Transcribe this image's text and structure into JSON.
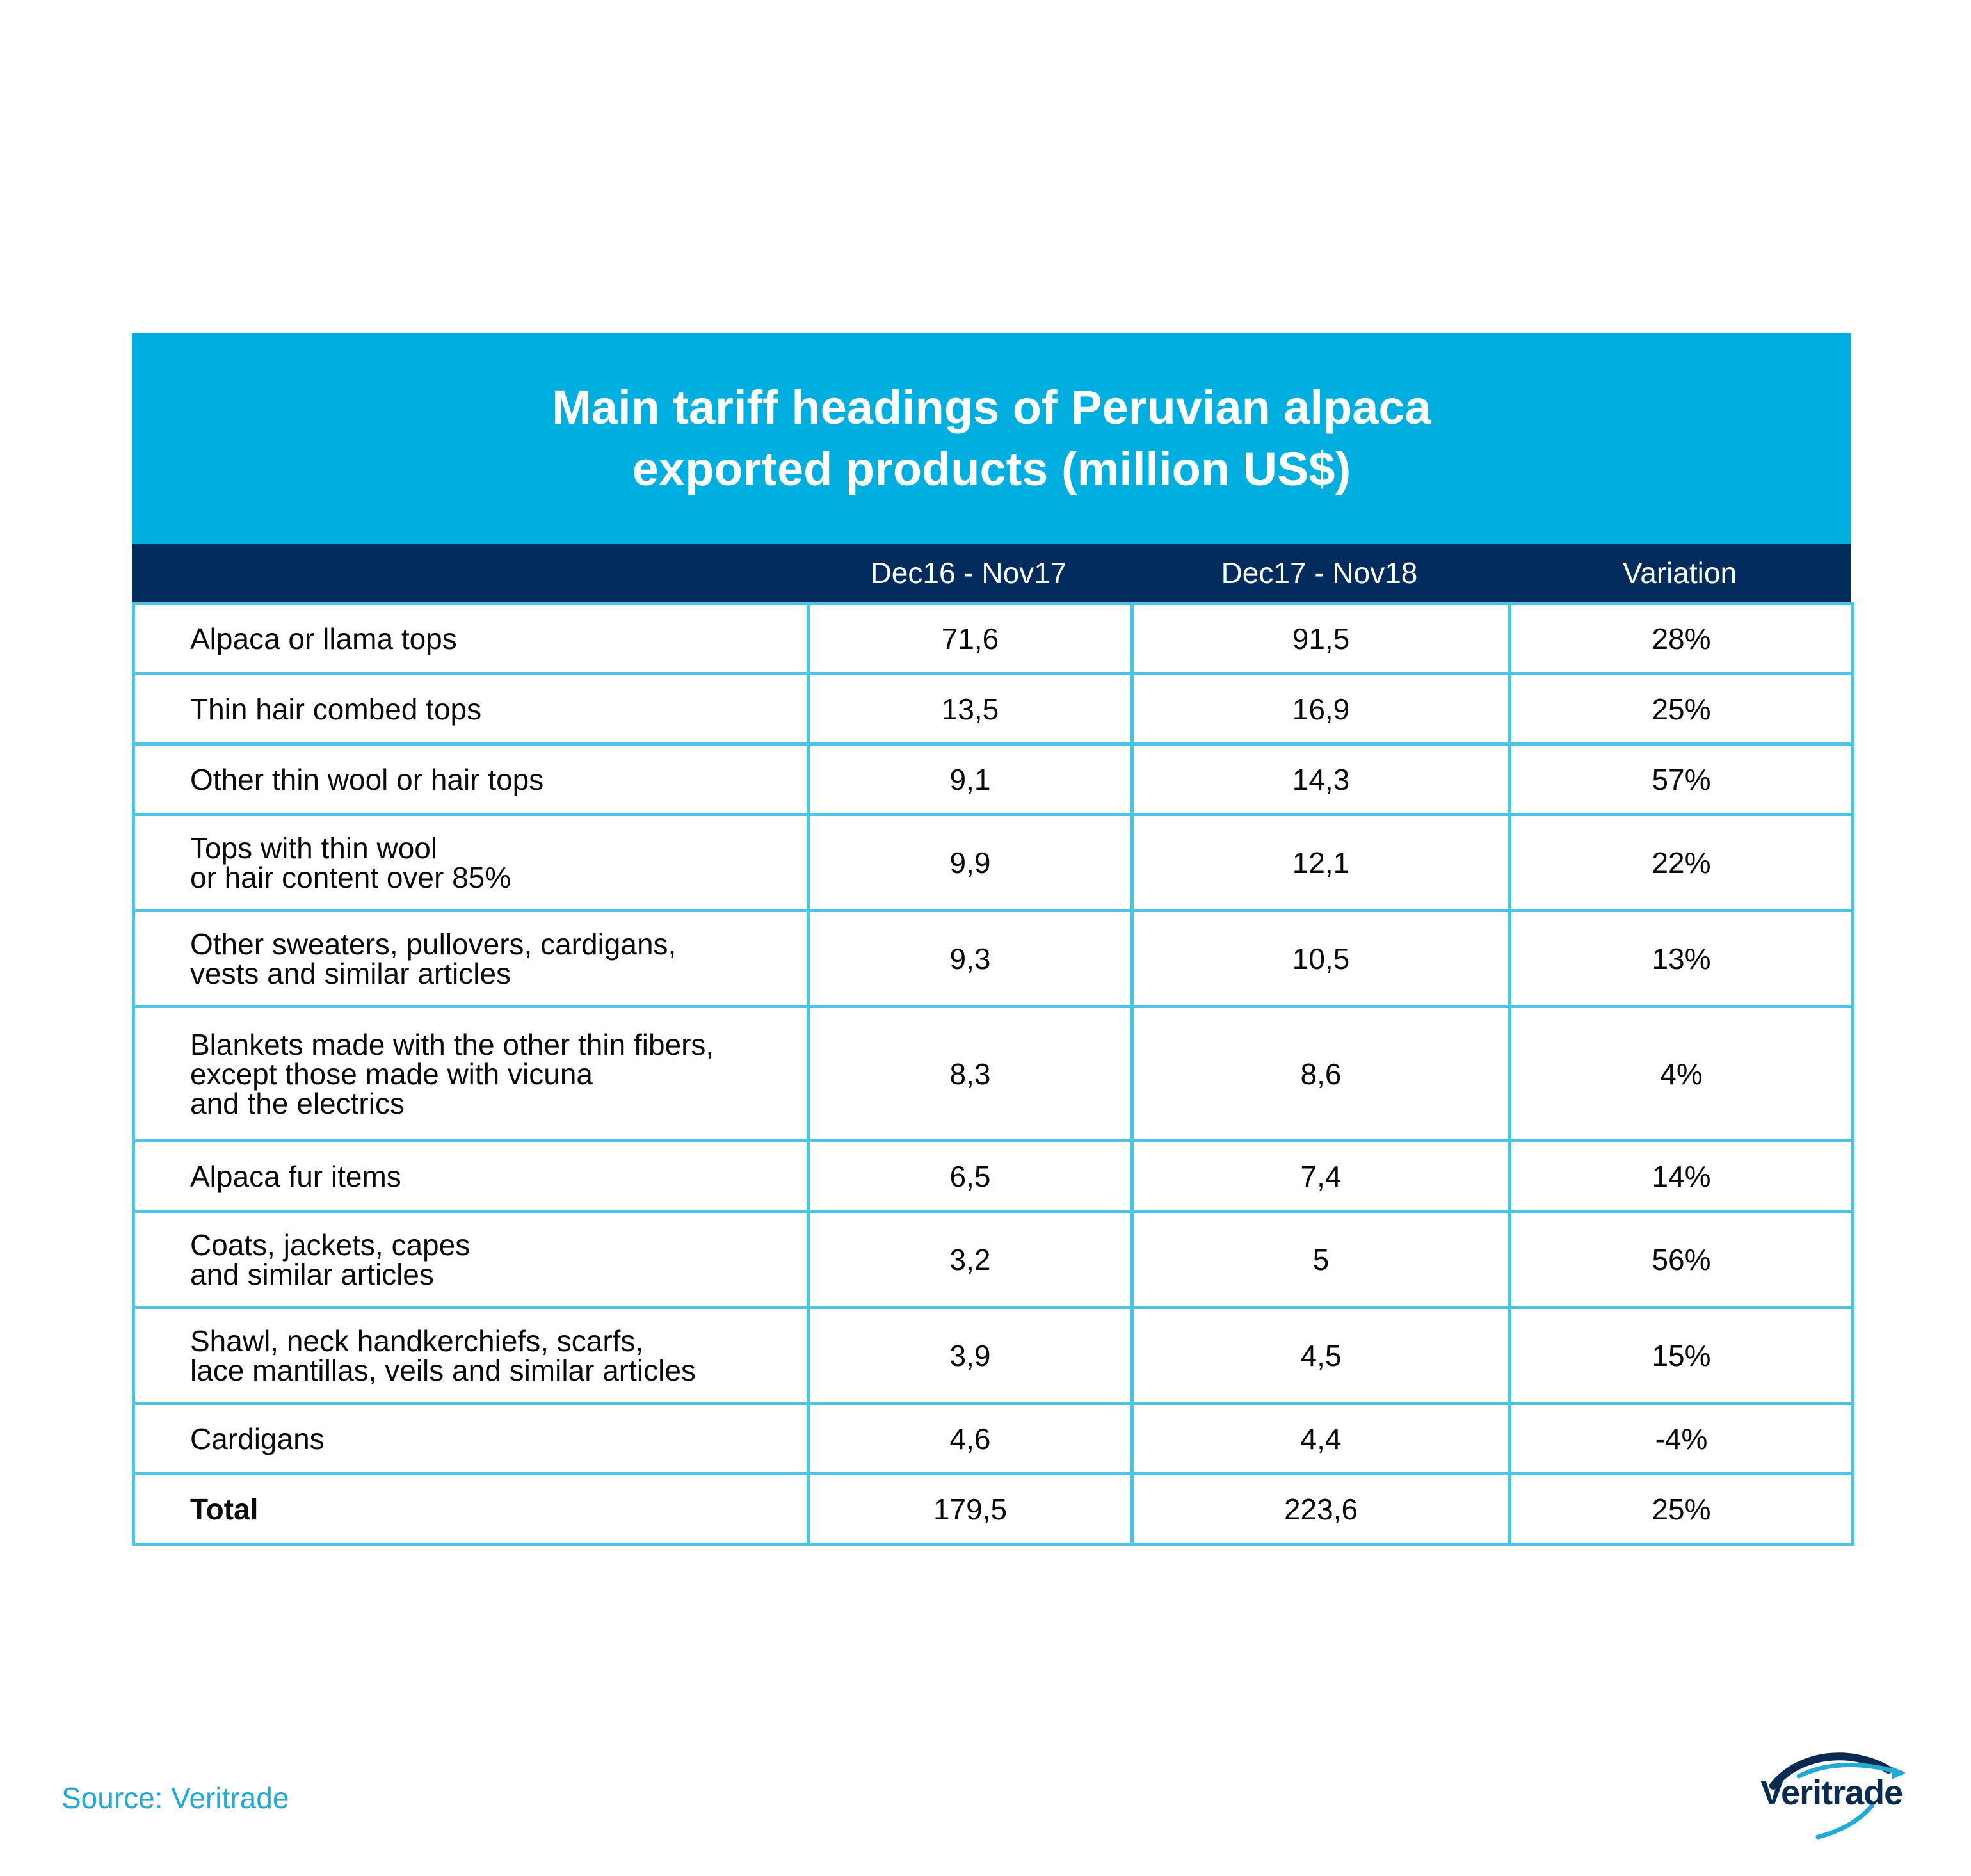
{
  "title": "Main tariff headings of Peruvian alpaca exported products (million US$)",
  "header": {
    "col1": "Dec16 - Nov17",
    "col2": "Dec17 - Nov18",
    "col3": "Variation"
  },
  "rows": [
    {
      "label": [
        "Alpaca or llama tops"
      ],
      "v1": "71,6",
      "v2": "91,5",
      "v3": "28%"
    },
    {
      "label": [
        "Thin hair combed tops"
      ],
      "v1": "13,5",
      "v2": "16,9",
      "v3": "25%"
    },
    {
      "label": [
        "Other thin wool or hair tops"
      ],
      "v1": "9,1",
      "v2": "14,3",
      "v3": "57%"
    },
    {
      "label": [
        "Tops with thin wool",
        "or hair content over 85%"
      ],
      "v1": "9,9",
      "v2": "12,1",
      "v3": "22%"
    },
    {
      "label": [
        "Other sweaters, pullovers, cardigans,",
        "vests and similar articles"
      ],
      "v1": "9,3",
      "v2": "10,5",
      "v3": "13%"
    },
    {
      "label": [
        "Blankets made with the other thin fibers,",
        "except those made with vicuna",
        "and the electrics"
      ],
      "v1": "8,3",
      "v2": "8,6",
      "v3": "4%"
    },
    {
      "label": [
        "Alpaca fur items"
      ],
      "v1": "6,5",
      "v2": "7,4",
      "v3": "14%"
    },
    {
      "label": [
        "Coats, jackets, capes",
        "and similar articles"
      ],
      "v1": "3,2",
      "v2": "5",
      "v3": "56%"
    },
    {
      "label": [
        "Shawl, neck handkerchiefs, scarfs,",
        "lace mantillas, veils and similar articles"
      ],
      "v1": "3,9",
      "v2": "4,5",
      "v3": "15%"
    },
    {
      "label": [
        "Cardigans"
      ],
      "v1": "4,6",
      "v2": "4,4",
      "v3": "-4%"
    }
  ],
  "total": {
    "label": "Total",
    "v1": "179,5",
    "v2": "223,6",
    "v3": "25%"
  },
  "source": "Source: Veritrade",
  "logo": {
    "text": "Veritrade"
  },
  "colors": {
    "title_band": "#00AEDF",
    "header_band": "#022C5E",
    "grid": "#4FC3E3",
    "source": "#22A9D6"
  }
}
